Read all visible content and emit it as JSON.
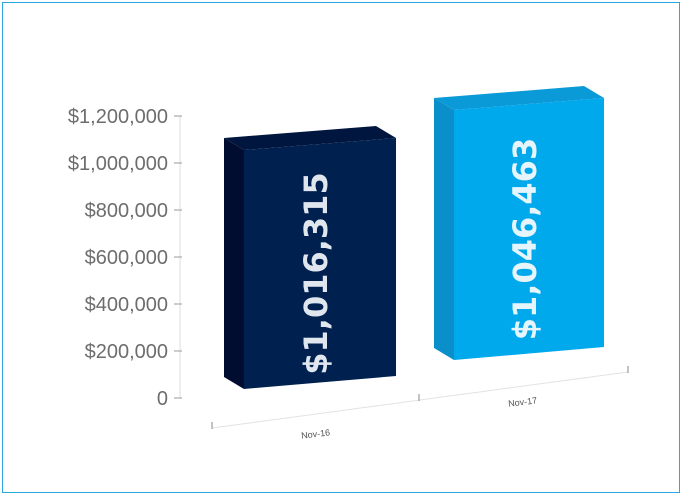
{
  "chart_data": {
    "type": "bar",
    "categories": [
      "Nov-16",
      "Nov-17"
    ],
    "values": [
      1016315,
      1046463
    ],
    "value_labels": [
      "$1,016,315",
      "$1,046,463"
    ],
    "yticks": [
      "0",
      "$200,000",
      "$400,000",
      "$600,000",
      "$800,000",
      "$1,000,000",
      "$1,200,000"
    ],
    "ytick_values": [
      0,
      200000,
      400000,
      600000,
      800000,
      1000000,
      1200000
    ],
    "ylim": [
      0,
      1200000
    ],
    "title": "",
    "xlabel": "",
    "ylabel": "",
    "grid": false,
    "colors": {
      "bar_1_front": "#002050",
      "bar_1_side": "#000c30",
      "bar_1_top": "#00163e",
      "bar_1_label": "#dfe6ee",
      "bar_2_front": "#00a8ec",
      "bar_2_side": "#0a8fcb",
      "bar_2_top": "#0a9ad8",
      "bar_2_label": "#e6f4fb",
      "frame": "#29a8e0",
      "axis": "#9a9a9a"
    }
  }
}
